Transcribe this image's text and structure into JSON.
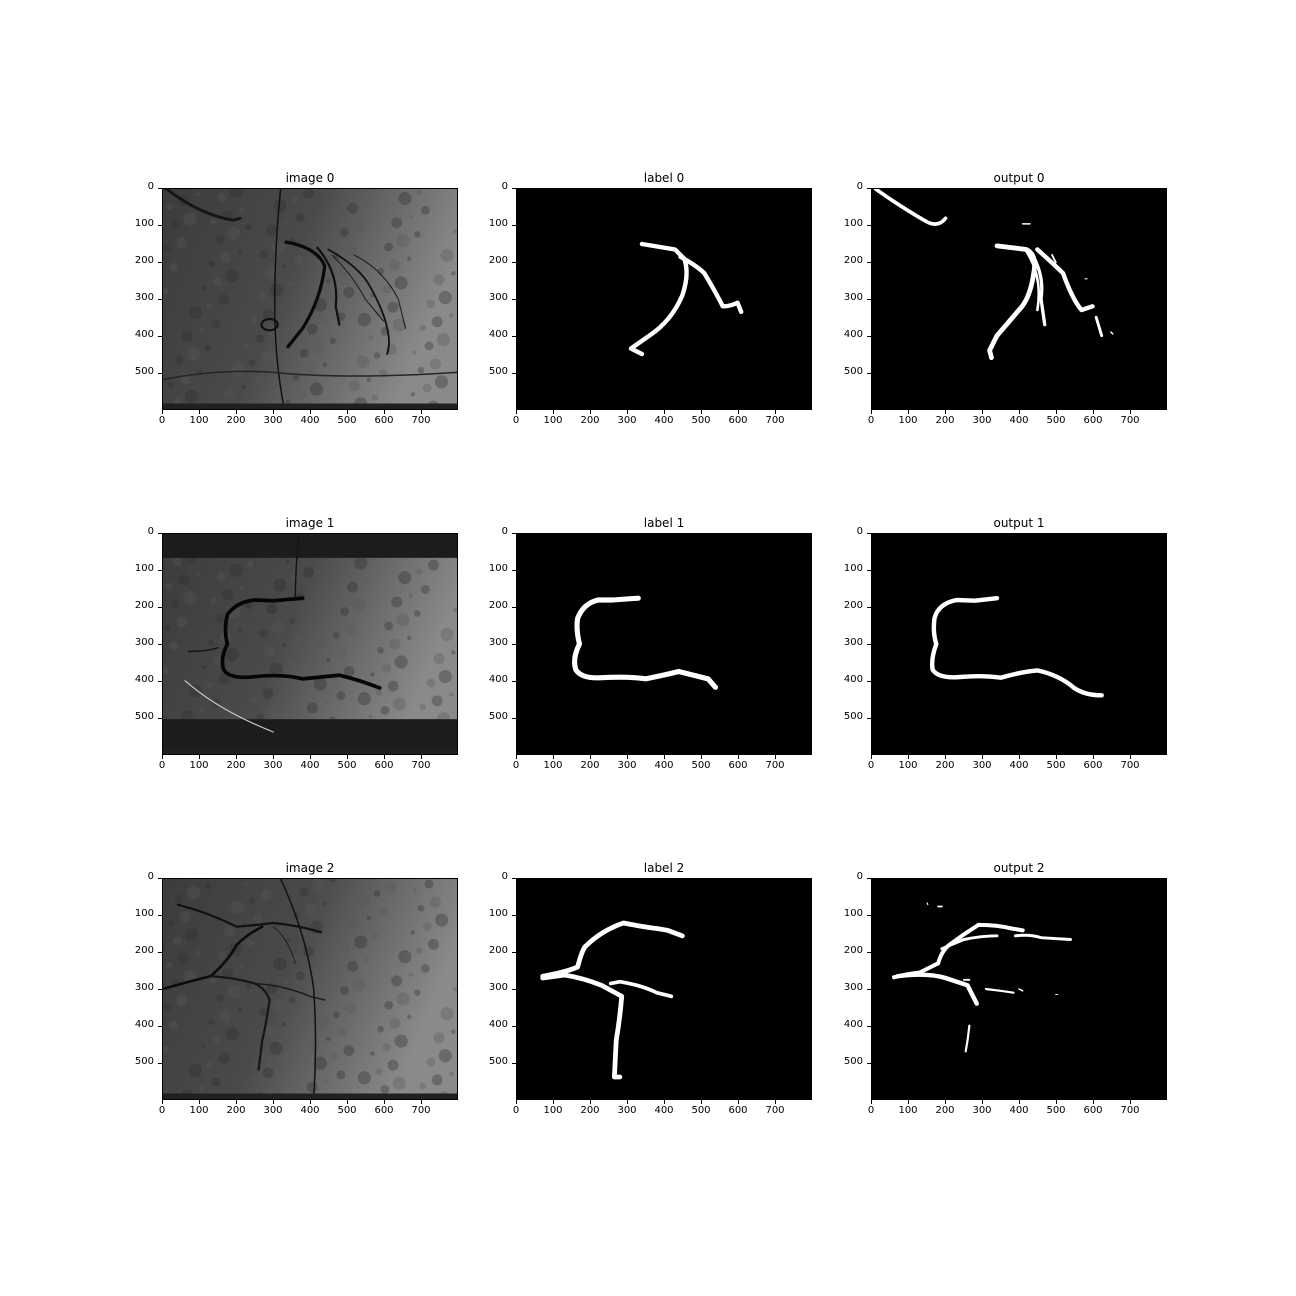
{
  "figure": {
    "panels": [
      {
        "row": 0,
        "col": 0,
        "title": "image 0",
        "kind": "image",
        "icon": "angiogram-image-0"
      },
      {
        "row": 0,
        "col": 1,
        "title": "label 0",
        "kind": "mask",
        "icon": "vessel-mask-label-0"
      },
      {
        "row": 0,
        "col": 2,
        "title": "output 0",
        "kind": "mask",
        "icon": "vessel-mask-output-0"
      },
      {
        "row": 1,
        "col": 0,
        "title": "image 1",
        "kind": "image",
        "icon": "angiogram-image-1"
      },
      {
        "row": 1,
        "col": 1,
        "title": "label 1",
        "kind": "mask",
        "icon": "vessel-mask-label-1"
      },
      {
        "row": 1,
        "col": 2,
        "title": "output 1",
        "kind": "mask",
        "icon": "vessel-mask-output-1"
      },
      {
        "row": 2,
        "col": 0,
        "title": "image 2",
        "kind": "image",
        "icon": "angiogram-image-2"
      },
      {
        "row": 2,
        "col": 1,
        "title": "label 2",
        "kind": "mask",
        "icon": "vessel-mask-label-2"
      },
      {
        "row": 2,
        "col": 2,
        "title": "output 2",
        "kind": "mask",
        "icon": "vessel-mask-output-2"
      }
    ],
    "x_ticks": [
      "0",
      "100",
      "200",
      "300",
      "400",
      "500",
      "600",
      "700"
    ],
    "y_ticks": [
      "0",
      "100",
      "200",
      "300",
      "400",
      "500"
    ],
    "x_range": [
      0,
      800
    ],
    "y_range": [
      0,
      600
    ],
    "colors": {
      "mask_bg": "#000000",
      "mask_fg": "#ffffff",
      "image_bg": "#3a3a3a"
    }
  }
}
